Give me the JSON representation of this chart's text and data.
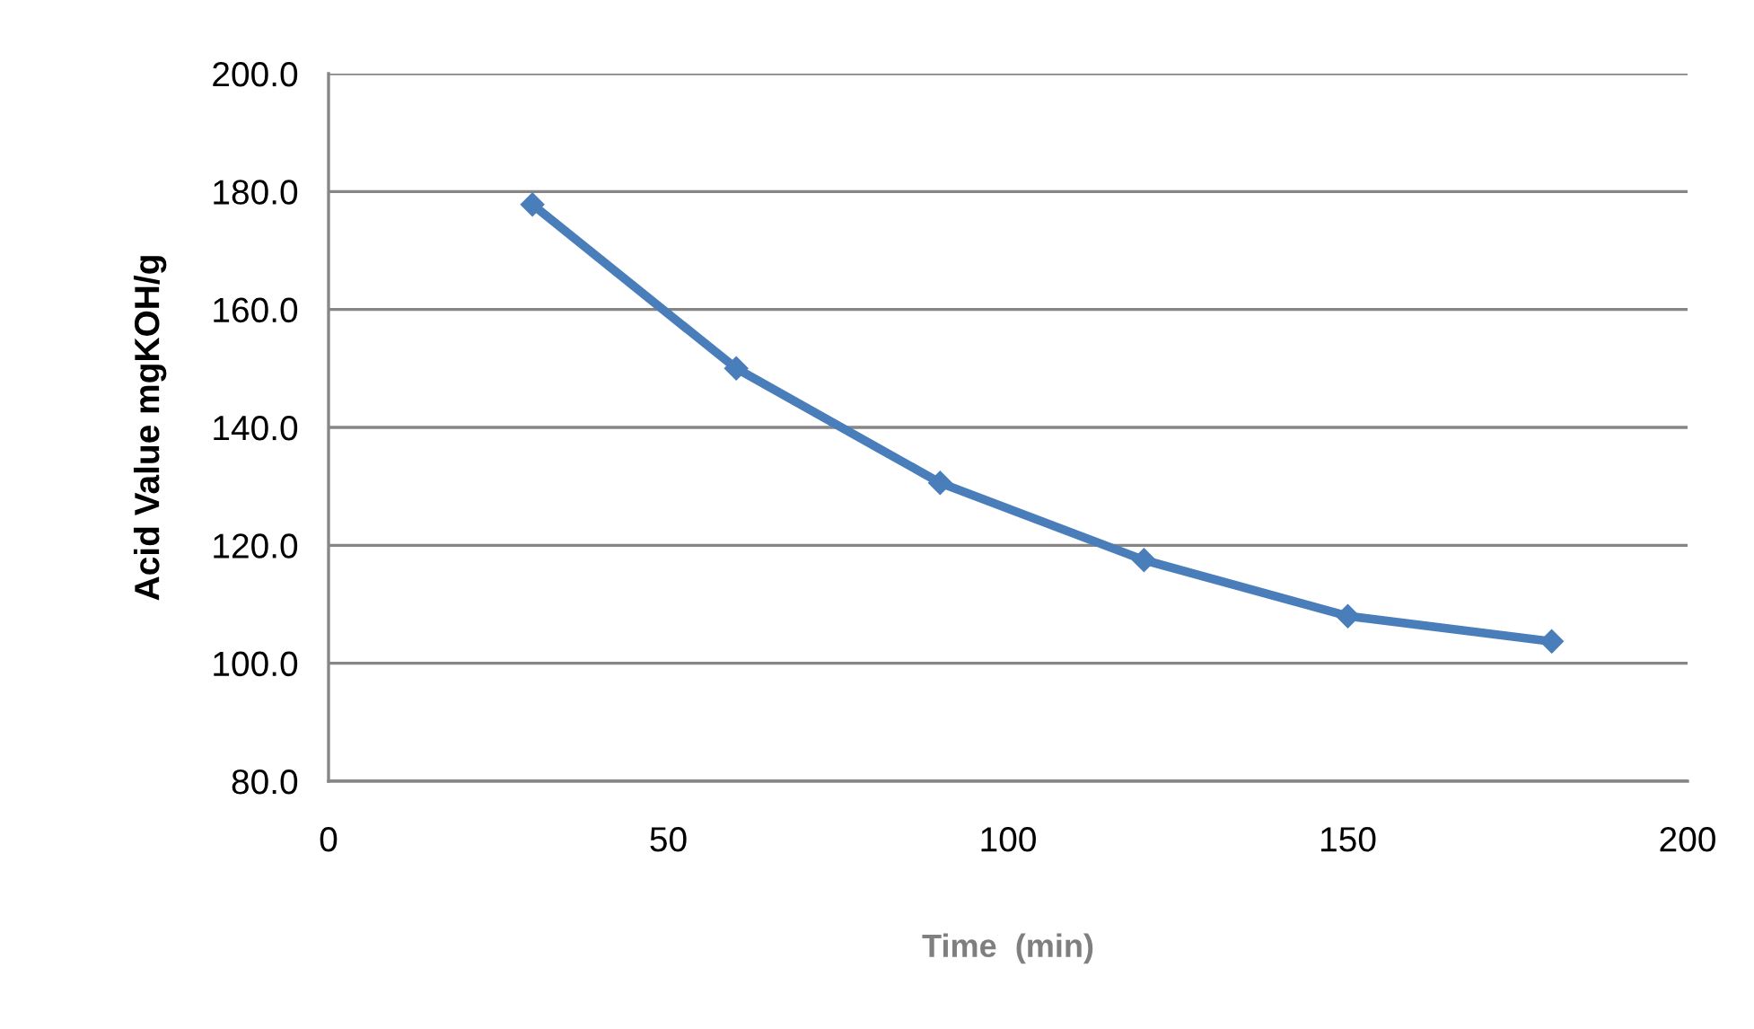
{
  "chart_data": {
    "type": "line",
    "xlabel": "Time  (min)",
    "ylabel": "Acid Value mgKOH/g",
    "x": [
      30,
      60,
      90,
      120,
      150,
      180
    ],
    "series": [
      {
        "color": "#4a7ebb",
        "values": [
          177.8,
          150.0,
          130.6,
          117.5,
          108.0,
          103.7
        ]
      }
    ],
    "xlim": [
      0,
      200
    ],
    "xticks": [
      0,
      50,
      100,
      150,
      200
    ],
    "ylim": [
      80,
      200
    ],
    "yticks": [
      {
        "value": 80,
        "label": "80.0"
      },
      {
        "value": 100,
        "label": "100.0"
      },
      {
        "value": 120,
        "label": "120.0"
      },
      {
        "value": 140,
        "label": "140.0"
      },
      {
        "value": 160,
        "label": "160.0"
      },
      {
        "value": 180,
        "label": "180.0"
      },
      {
        "value": 200,
        "label": "200.0"
      }
    ],
    "grid": "y",
    "marker": "diamond",
    "line_style": "solid",
    "legend": false
  }
}
